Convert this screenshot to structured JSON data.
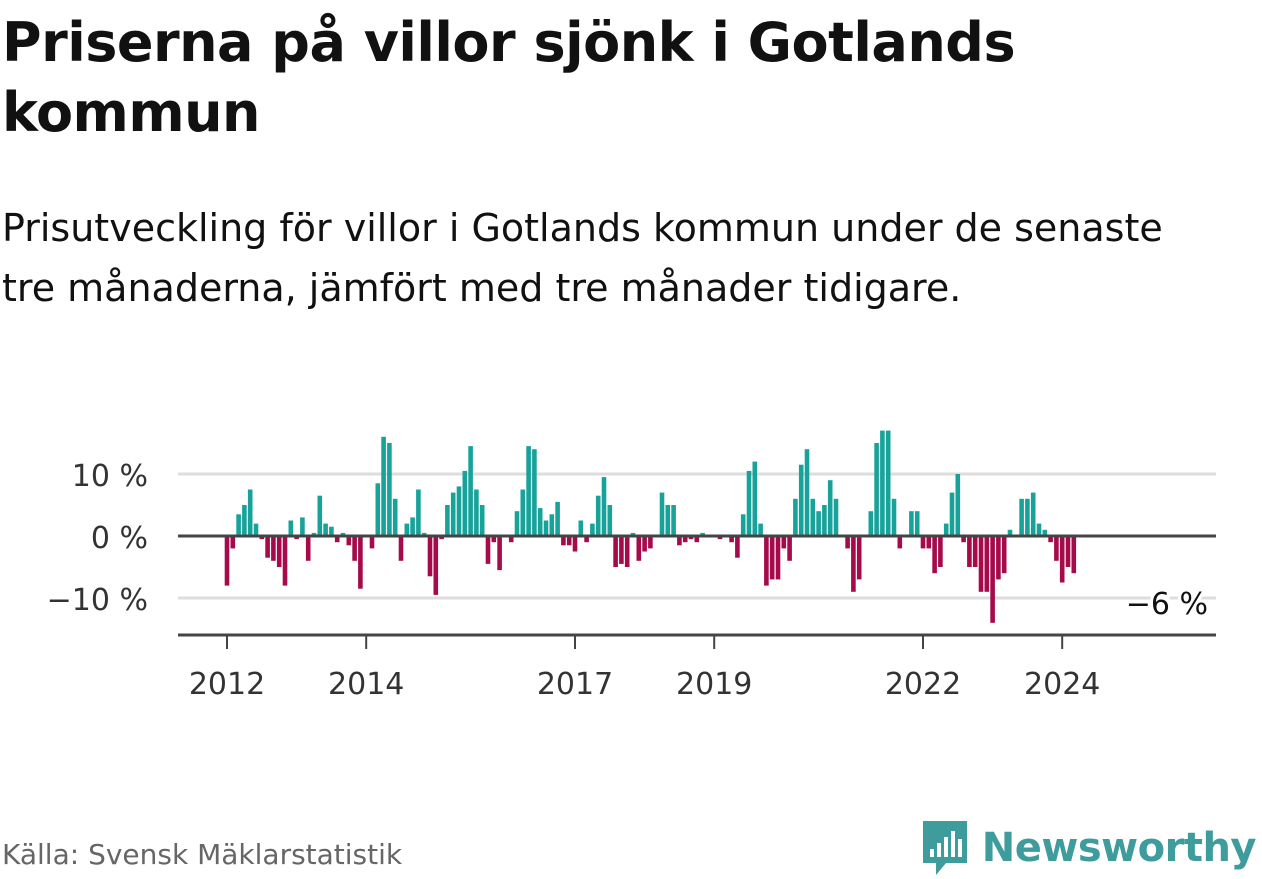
{
  "title": "Priserna på villor sjönk i Gotlands kommun",
  "subtitle": "Prisutveckling för villor i Gotlands kommun under de senaste tre månaderna, jämfört med tre månader tidigare.",
  "source": "Källa: Svensk Mäklarstatistik",
  "brand": "Newsworthy",
  "colors": {
    "positive": "#17a29a",
    "negative": "#a50a4a",
    "grid": "#dddddd",
    "axis": "#444444",
    "brand": "#3f9c9c"
  },
  "chart_data": {
    "type": "bar",
    "x_start": "2012-01",
    "frequency": "monthly",
    "x_ticks": [
      "2012",
      "2014",
      "2017",
      "2019",
      "2022",
      "2024"
    ],
    "y_ticks": [
      "10 %",
      "0 %",
      "−10 %"
    ],
    "y_tick_values": [
      10,
      0,
      -10
    ],
    "ylim": [
      -16,
      17
    ],
    "grid": true,
    "annotation": "−6 %",
    "values": [
      -8,
      -2,
      3.5,
      5,
      7.5,
      2,
      -0.5,
      -3.5,
      -4,
      -5,
      -8,
      2.5,
      -0.5,
      3,
      -4,
      0.5,
      6.5,
      2,
      1.5,
      -1,
      0.5,
      -1.5,
      -4,
      -8.5,
      0,
      -2,
      8.5,
      16,
      15,
      6,
      -4,
      2,
      3,
      7.5,
      0.5,
      -6.5,
      -9.5,
      -0.5,
      5,
      7,
      8,
      10.5,
      14.5,
      7.5,
      5,
      -4.5,
      -1,
      -5.5,
      0,
      -1,
      4,
      7.5,
      14.5,
      14,
      4.5,
      2.5,
      3.5,
      5.5,
      -1.5,
      -1.5,
      -2.5,
      2.5,
      -1,
      2,
      6.5,
      9.5,
      5,
      -5,
      -4.5,
      -5,
      0.5,
      -4,
      -2.5,
      -2,
      0,
      7,
      5,
      5,
      -1.5,
      -1,
      -0.5,
      -1,
      0.5,
      0,
      0,
      -0.5,
      0,
      -1,
      -3.5,
      3.5,
      10.5,
      12,
      2,
      -8,
      -7,
      -7,
      -2,
      -4,
      6,
      11.5,
      14,
      6,
      4,
      5,
      9,
      6,
      0,
      -2,
      -9,
      -7,
      0,
      4,
      15,
      17,
      17,
      6,
      -2,
      0,
      4,
      4,
      -2,
      -2,
      -6,
      -5,
      2,
      7,
      10,
      -1,
      -5,
      -5,
      -9,
      -9,
      -14,
      -7,
      -6,
      1,
      0,
      6,
      6,
      7,
      2,
      1,
      -1,
      -4,
      -7.5,
      -5,
      -6
    ]
  }
}
